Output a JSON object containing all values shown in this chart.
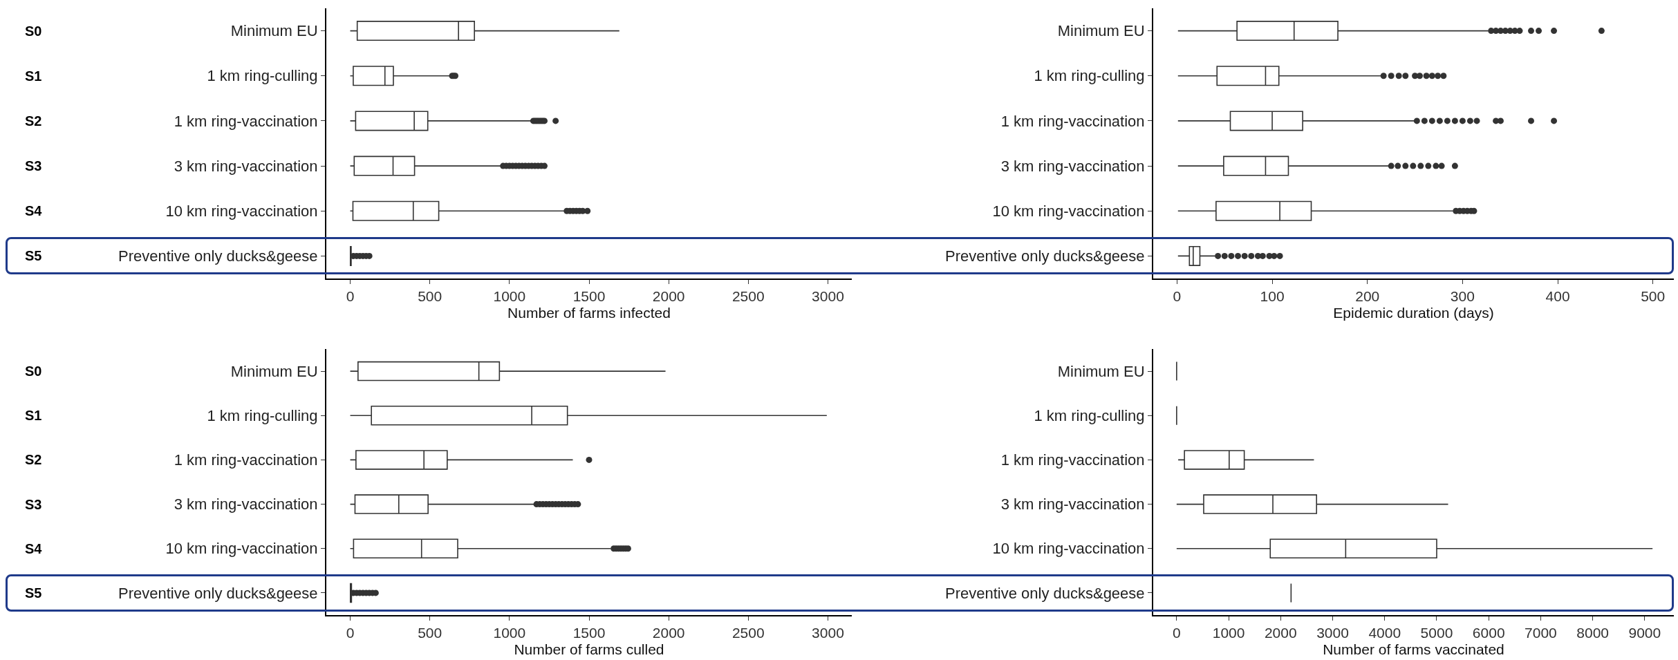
{
  "chart_data": [
    {
      "type": "box",
      "orientation": "horizontal",
      "categories": [
        "Minimum EU",
        "1 km ring-culling",
        "1 km ring-vaccination",
        "3 km ring-vaccination",
        "10 km ring-vaccination",
        "Preventive only ducks&geese"
      ],
      "boxes": [
        {
          "low": 0,
          "q1": 44,
          "median": 680,
          "q3": 780,
          "high": 1690
        },
        {
          "low": 0,
          "q1": 19,
          "median": 218,
          "q3": 271,
          "high": 625,
          "outliers": [
            640,
            650,
            660
          ]
        },
        {
          "low": 0,
          "q1": 34,
          "median": 402,
          "q3": 487,
          "high": 1135,
          "outliers": [
            1150,
            1160,
            1170,
            1180,
            1190,
            1200,
            1210,
            1220,
            1290
          ]
        },
        {
          "low": 0,
          "q1": 25,
          "median": 269,
          "q3": 404,
          "high": 950,
          "outliers": [
            960,
            980,
            1000,
            1020,
            1040,
            1060,
            1080,
            1100,
            1120,
            1140,
            1160,
            1180,
            1200,
            1220
          ]
        },
        {
          "low": 0,
          "q1": 17,
          "median": 396,
          "q3": 556,
          "high": 1345,
          "outliers": [
            1360,
            1380,
            1400,
            1420,
            1440,
            1460,
            1490
          ]
        },
        {
          "low": 0,
          "q1": 1,
          "median": 3,
          "q3": 6,
          "high": 15,
          "outliers": [
            20,
            40,
            60,
            80,
            100,
            120
          ]
        }
      ],
      "xlabel": "Number of farms infected",
      "xlim": [
        -150,
        3150
      ],
      "xticks": [
        0,
        500,
        1000,
        1500,
        2000,
        2500,
        3000
      ],
      "annotations": [
        "S0",
        "S1",
        "S2",
        "S3",
        "S4",
        "S5"
      ]
    },
    {
      "type": "box",
      "orientation": "horizontal",
      "categories": [
        "Minimum EU",
        "1 km ring-culling",
        "1 km ring-vaccination",
        "3 km ring-vaccination",
        "10 km ring-vaccination",
        "Preventive only ducks&geese"
      ],
      "boxes": [
        {
          "low": 1,
          "q1": 63,
          "median": 123,
          "q3": 169,
          "high": 327,
          "outliers": [
            330,
            335,
            340,
            345,
            350,
            355,
            360,
            372,
            380,
            396,
            446
          ]
        },
        {
          "low": 1,
          "q1": 42,
          "median": 93,
          "q3": 107,
          "high": 214,
          "outliers": [
            217,
            225,
            233,
            240,
            250,
            255,
            262,
            268,
            274,
            280
          ]
        },
        {
          "low": 1,
          "q1": 56,
          "median": 100,
          "q3": 132,
          "high": 249,
          "outliers": [
            252,
            260,
            268,
            276,
            284,
            292,
            300,
            308,
            315,
            335,
            340,
            372,
            396
          ]
        },
        {
          "low": 1,
          "q1": 49,
          "median": 93,
          "q3": 117,
          "high": 222,
          "outliers": [
            225,
            232,
            240,
            248,
            256,
            264,
            272,
            278,
            292
          ]
        },
        {
          "low": 1,
          "q1": 41,
          "median": 108,
          "q3": 141,
          "high": 290,
          "outliers": [
            293,
            297,
            301,
            305,
            309,
            312
          ]
        },
        {
          "low": 1,
          "q1": 13,
          "median": 17,
          "q3": 24,
          "high": 40,
          "outliers": [
            43,
            50,
            57,
            64,
            71,
            78,
            85,
            90,
            97,
            102,
            108
          ]
        }
      ],
      "xlabel": "Epidemic duration (days)",
      "xlim": [
        -25,
        522
      ],
      "xticks": [
        0,
        100,
        200,
        300,
        400,
        500
      ]
    },
    {
      "type": "box",
      "orientation": "horizontal",
      "categories": [
        "Minimum EU",
        "1 km ring-culling",
        "1 km ring-vaccination",
        "3 km ring-vaccination",
        "10 km ring-vaccination",
        "Preventive only ducks&geese"
      ],
      "boxes": [
        {
          "low": 0,
          "q1": 49,
          "median": 808,
          "q3": 937,
          "high": 1980
        },
        {
          "low": 0,
          "q1": 133,
          "median": 1140,
          "q3": 1364,
          "high": 2993
        },
        {
          "low": 0,
          "q1": 36,
          "median": 463,
          "q3": 609,
          "high": 1398,
          "outliers": [
            1500
          ]
        },
        {
          "low": 0,
          "q1": 30,
          "median": 305,
          "q3": 489,
          "high": 1155,
          "outliers": [
            1170,
            1190,
            1210,
            1230,
            1250,
            1270,
            1290,
            1310,
            1330,
            1350,
            1370,
            1390,
            1410,
            1430
          ]
        },
        {
          "low": 0,
          "q1": 21,
          "median": 448,
          "q3": 675,
          "high": 1637,
          "outliers": [
            1655,
            1670,
            1685,
            1700,
            1715,
            1730,
            1745
          ]
        },
        {
          "low": 0,
          "q1": 1,
          "median": 4,
          "q3": 8,
          "high": 15,
          "outliers": [
            20,
            40,
            60,
            80,
            100,
            120,
            140,
            160
          ]
        }
      ],
      "xlabel": "Number of farms culled",
      "xlim": [
        -150,
        3150
      ],
      "xticks": [
        0,
        500,
        1000,
        1500,
        2000,
        2500,
        3000
      ],
      "annotations": [
        "S0",
        "S1",
        "S2",
        "S3",
        "S4",
        "S5"
      ]
    },
    {
      "type": "box",
      "orientation": "horizontal",
      "categories": [
        "Minimum EU",
        "1 km ring-culling",
        "1 km ring-vaccination",
        "3 km ring-vaccination",
        "10 km ring-vaccination",
        "Preventive only ducks&geese"
      ],
      "boxes": [
        {
          "low": 0,
          "q1": 0,
          "median": 0,
          "q3": 0,
          "high": 0
        },
        {
          "low": 0,
          "q1": 0,
          "median": 0,
          "q3": 0,
          "high": 0
        },
        {
          "low": 30,
          "q1": 150,
          "median": 1010,
          "q3": 1300,
          "high": 2640
        },
        {
          "low": 0,
          "q1": 520,
          "median": 1850,
          "q3": 2690,
          "high": 5220
        },
        {
          "low": 0,
          "q1": 1800,
          "median": 3250,
          "q3": 5000,
          "high": 9150
        },
        {
          "low": 2200,
          "q1": 2200,
          "median": 2200,
          "q3": 2200,
          "high": 2200
        }
      ],
      "xlabel": "Number of farms vaccinated",
      "xlim": [
        -450,
        9560
      ],
      "xticks": [
        0,
        1000,
        2000,
        3000,
        4000,
        5000,
        6000,
        7000,
        8000,
        9000
      ]
    }
  ]
}
